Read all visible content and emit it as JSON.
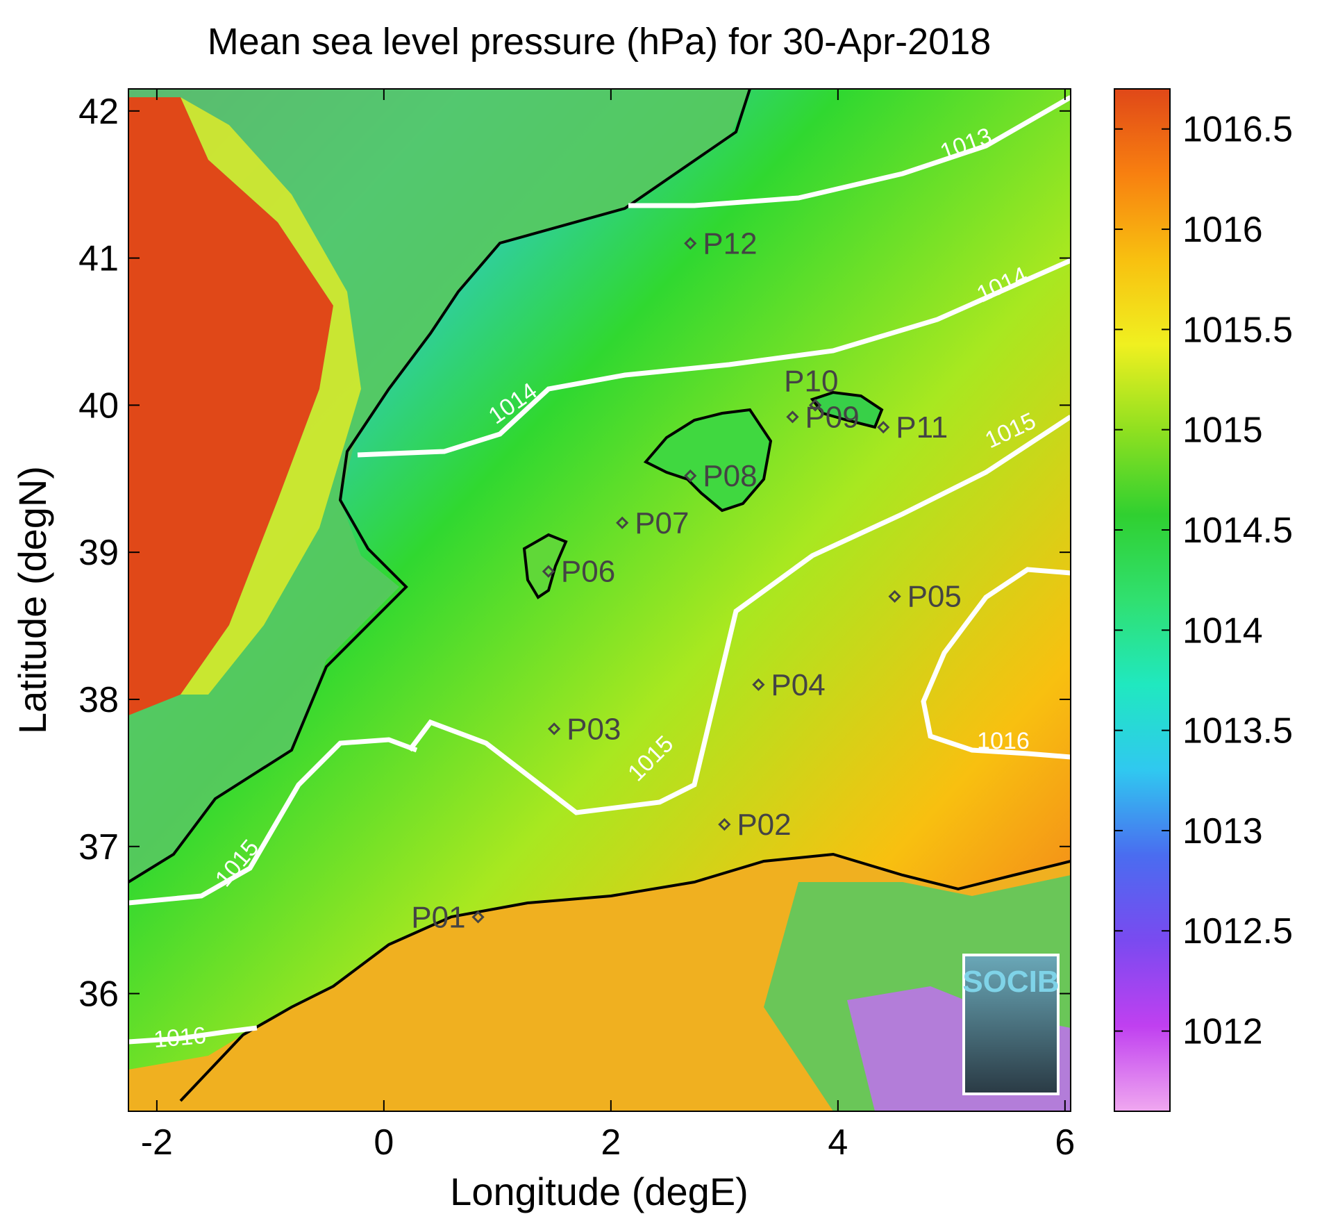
{
  "title": "Mean sea level pressure (hPa) for 30-Apr-2018",
  "axes": {
    "xlabel": "Longitude (degE)",
    "ylabel": "Latitude (degN)",
    "xlim": [
      -2.25,
      6.05
    ],
    "ylim": [
      35.2,
      42.15
    ],
    "xticks": [
      -2,
      0,
      2,
      4,
      6
    ],
    "yticks": [
      36,
      37,
      38,
      39,
      40,
      41,
      42
    ]
  },
  "colorbar": {
    "range": [
      1011.6,
      1016.7
    ],
    "ticks": [
      1012,
      1012.5,
      1013,
      1013.5,
      1014,
      1014.5,
      1015,
      1015.5,
      1016,
      1016.5
    ],
    "tick_labels": [
      "1012",
      "1012.5",
      "1013",
      "1013.5",
      "1014",
      "1014.5",
      "1015",
      "1015.5",
      "1016",
      "1016.5"
    ],
    "colors": [
      "#f0a8f0",
      "#c040f0",
      "#7a4af0",
      "#4a6cf0",
      "#30c8f0",
      "#20e8c0",
      "#30e070",
      "#30d030",
      "#90e020",
      "#f0f020",
      "#f8c010",
      "#f88010",
      "#e04818"
    ]
  },
  "stations": [
    {
      "id": "P01",
      "lon": 0.83,
      "lat": 36.52
    },
    {
      "id": "P02",
      "lon": 3.0,
      "lat": 37.15
    },
    {
      "id": "P03",
      "lon": 1.5,
      "lat": 37.8
    },
    {
      "id": "P04",
      "lon": 3.3,
      "lat": 38.1
    },
    {
      "id": "P05",
      "lon": 4.5,
      "lat": 38.7
    },
    {
      "id": "P06",
      "lon": 1.45,
      "lat": 38.87
    },
    {
      "id": "P07",
      "lon": 2.1,
      "lat": 39.2
    },
    {
      "id": "P08",
      "lon": 2.7,
      "lat": 39.52
    },
    {
      "id": "P09",
      "lon": 3.6,
      "lat": 39.92
    },
    {
      "id": "P10",
      "lon": 3.8,
      "lat": 40.0
    },
    {
      "id": "P11",
      "lon": 4.4,
      "lat": 39.85
    },
    {
      "id": "P12",
      "lon": 2.7,
      "lat": 41.1
    }
  ],
  "contour_labels": [
    "1013",
    "1014",
    "1014",
    "1015",
    "1015",
    "1015",
    "1016",
    "1016"
  ],
  "logo": "SOCIB"
}
